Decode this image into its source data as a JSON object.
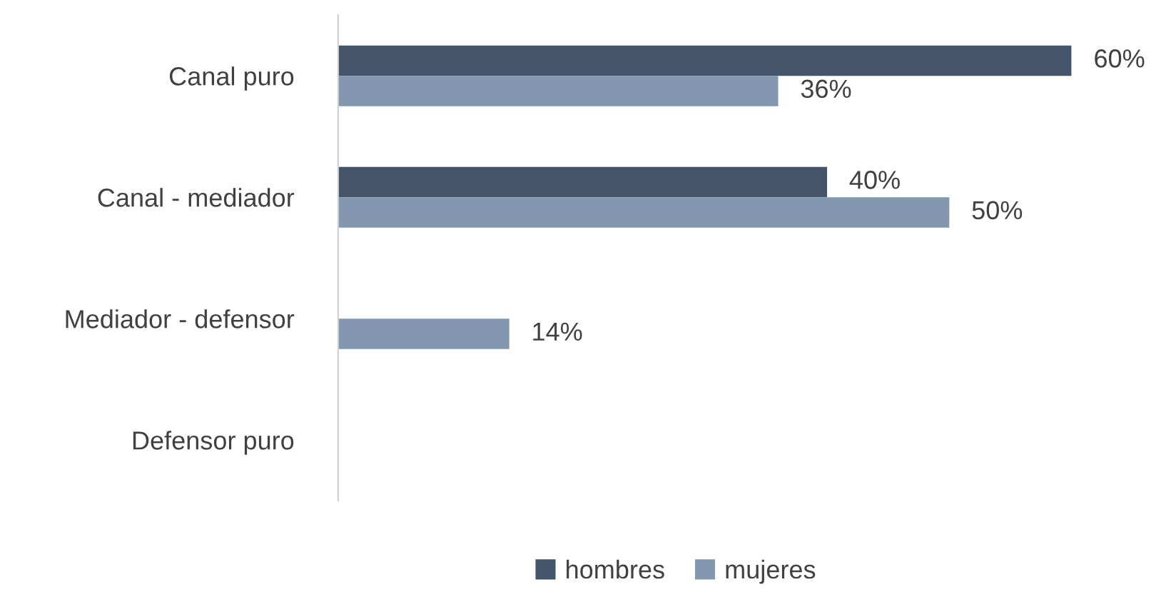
{
  "chart_data": {
    "type": "bar",
    "orientation": "horizontal",
    "categories": [
      "Canal puro",
      "Canal - mediador",
      "Mediador - defensor",
      "Defensor puro"
    ],
    "series": [
      {
        "name": "hombres",
        "color": "#44546a",
        "values": [
          60,
          40,
          null,
          null
        ],
        "value_labels": [
          "60%",
          "40%",
          null,
          null
        ]
      },
      {
        "name": "mujeres",
        "color": "#8497b0",
        "values": [
          36,
          50,
          14,
          null
        ],
        "value_labels": [
          "36%",
          "50%",
          "14%",
          null
        ]
      }
    ],
    "tick_labels": "y",
    "grid": false,
    "legend": "bottom"
  }
}
